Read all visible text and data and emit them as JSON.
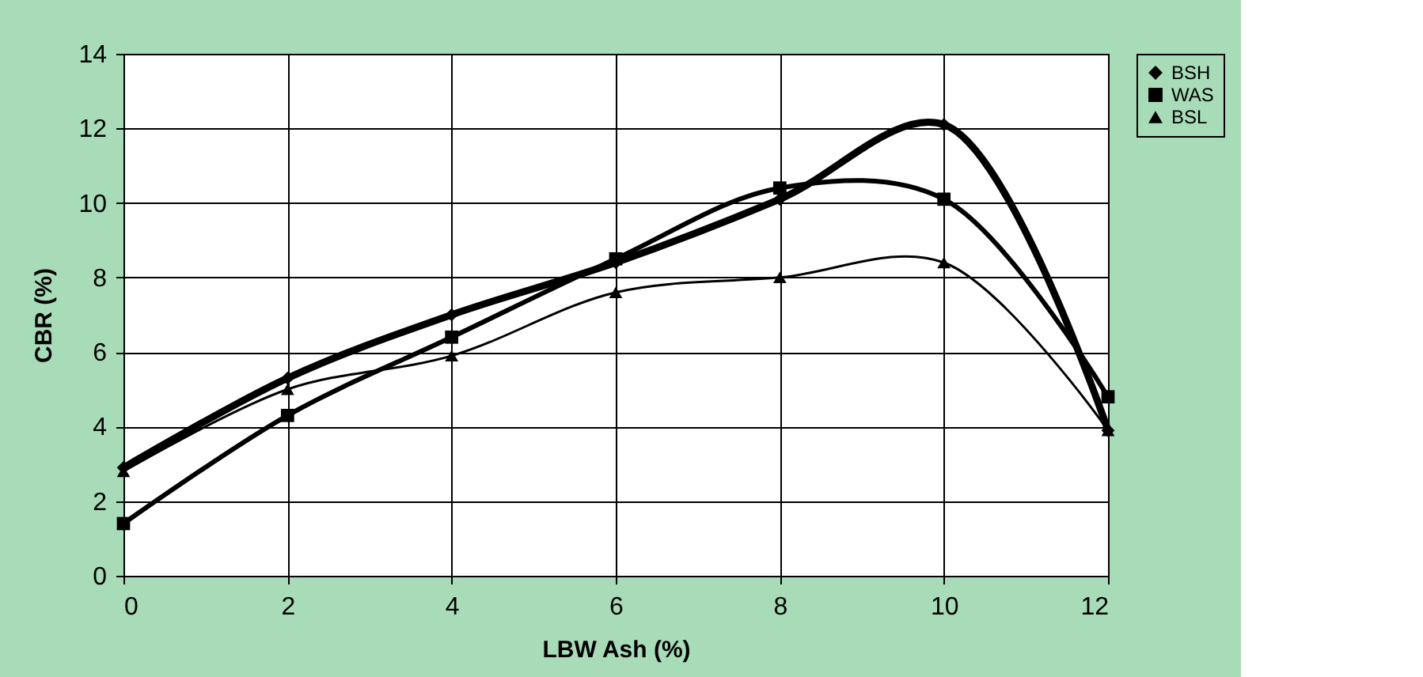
{
  "chart_data": {
    "type": "line",
    "xlabel": "LBW Ash (%)",
    "ylabel": "CBR (%)",
    "x": [
      0,
      2,
      4,
      6,
      8,
      10,
      12
    ],
    "series": [
      {
        "name": "BSH",
        "color": "#000000",
        "marker": "diamond",
        "values": [
          2.9,
          5.3,
          7.0,
          8.4,
          10.1,
          12.1,
          3.9
        ]
      },
      {
        "name": "WAS",
        "color": "#000000",
        "marker": "square",
        "values": [
          1.4,
          4.3,
          6.4,
          8.5,
          10.4,
          10.1,
          4.8
        ]
      },
      {
        "name": "BSL",
        "color": "#000000",
        "marker": "triangle",
        "values": [
          2.8,
          5.0,
          5.9,
          7.6,
          8.0,
          8.4,
          3.9
        ]
      }
    ],
    "xlim": [
      0,
      12
    ],
    "xticks": [
      0,
      2,
      4,
      6,
      8,
      10,
      12
    ],
    "ylim": [
      0,
      14
    ],
    "yticks": [
      0,
      2,
      4,
      6,
      8,
      10,
      12,
      14
    ],
    "grid": true,
    "legend": "right"
  }
}
